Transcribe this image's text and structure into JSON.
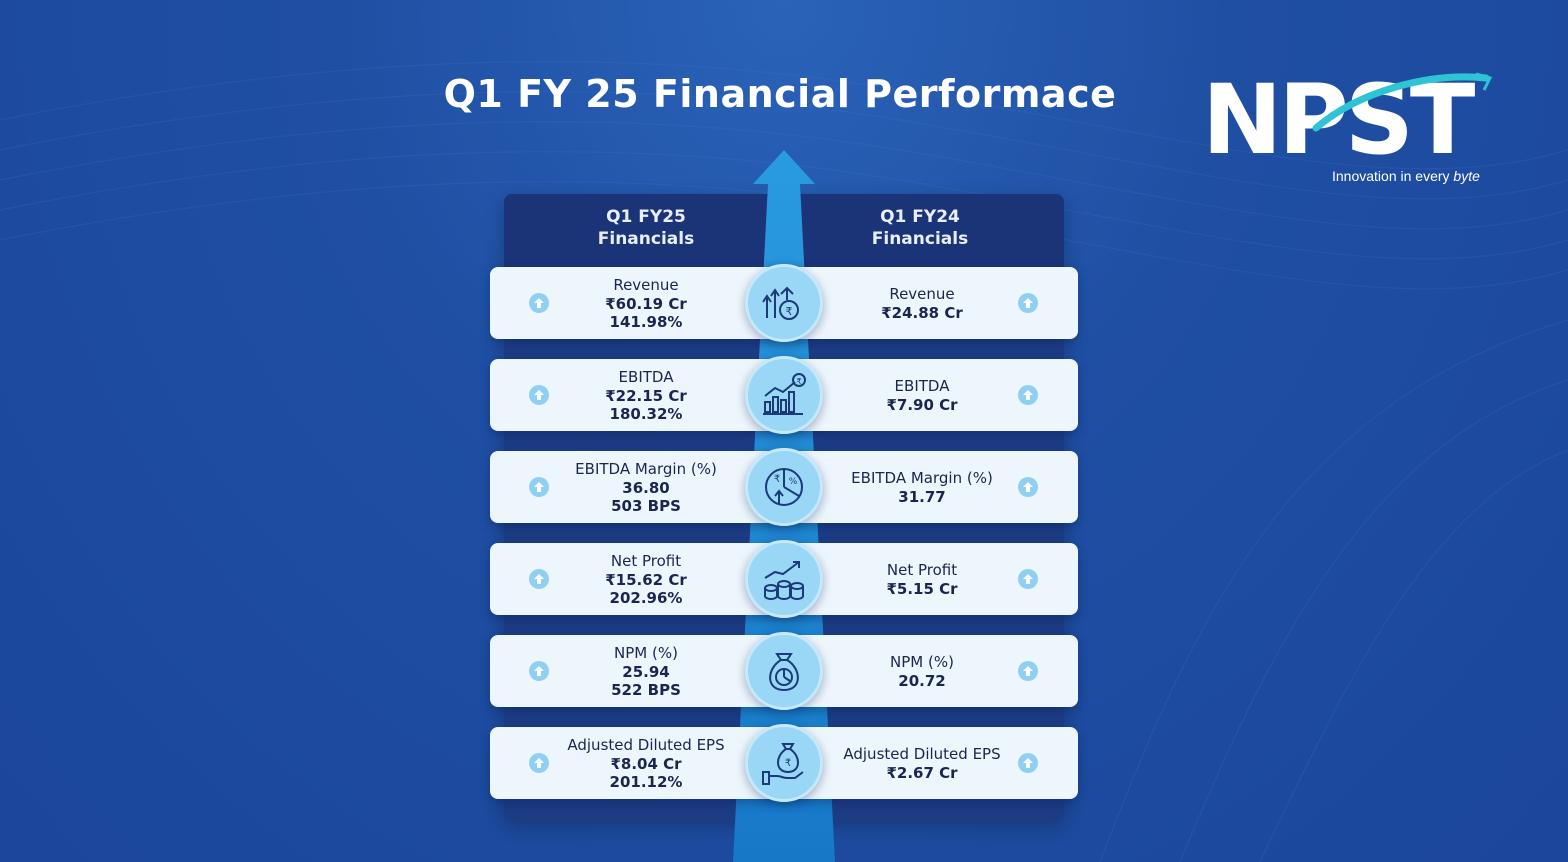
{
  "title": "Q1 FY 25 Financial Performace",
  "logo": {
    "wordmark": "NPST",
    "tagline_regular": "Innovation in every ",
    "tagline_italic": "byte"
  },
  "columns": {
    "left_header": "Q1 FY25\nFinancials",
    "right_header": "Q1 FY24\nFinancials"
  },
  "colors": {
    "background": "#1f4fa3",
    "row_background": "#eef6fd",
    "badge": "#9ad6f5",
    "arrow": "#1e8ad6",
    "accent": "#2ec4d6"
  },
  "metrics": [
    {
      "icon": "revenue-growth-icon",
      "fy25": {
        "label": "Revenue",
        "value": "₹60.19 Cr",
        "change": "141.98%"
      },
      "fy24": {
        "label": "Revenue",
        "value": "₹24.88 Cr"
      }
    },
    {
      "icon": "bar-chart-rupee-icon",
      "fy25": {
        "label": "EBITDA",
        "value": "₹22.15 Cr",
        "change": "180.32%"
      },
      "fy24": {
        "label": "EBITDA",
        "value": "₹7.90 Cr"
      }
    },
    {
      "icon": "pie-percent-icon",
      "fy25": {
        "label": "EBITDA Margin (%)",
        "value": "36.80",
        "change": "503 BPS"
      },
      "fy24": {
        "label": "EBITDA Margin (%)",
        "value": "31.77"
      }
    },
    {
      "icon": "coins-trend-icon",
      "fy25": {
        "label": "Net Profit",
        "value": "₹15.62 Cr",
        "change": "202.96%"
      },
      "fy24": {
        "label": "Net Profit",
        "value": "₹5.15 Cr"
      }
    },
    {
      "icon": "money-bag-pie-icon",
      "fy25": {
        "label": "NPM (%)",
        "value": "25.94",
        "change": "522 BPS"
      },
      "fy24": {
        "label": "NPM (%)",
        "value": "20.72"
      }
    },
    {
      "icon": "hand-money-bag-icon",
      "fy25": {
        "label": "Adjusted Diluted EPS",
        "value": "₹8.04 Cr",
        "change": "201.12%"
      },
      "fy24": {
        "label": "Adjusted Diluted EPS",
        "value": "₹2.67 Cr"
      }
    }
  ]
}
